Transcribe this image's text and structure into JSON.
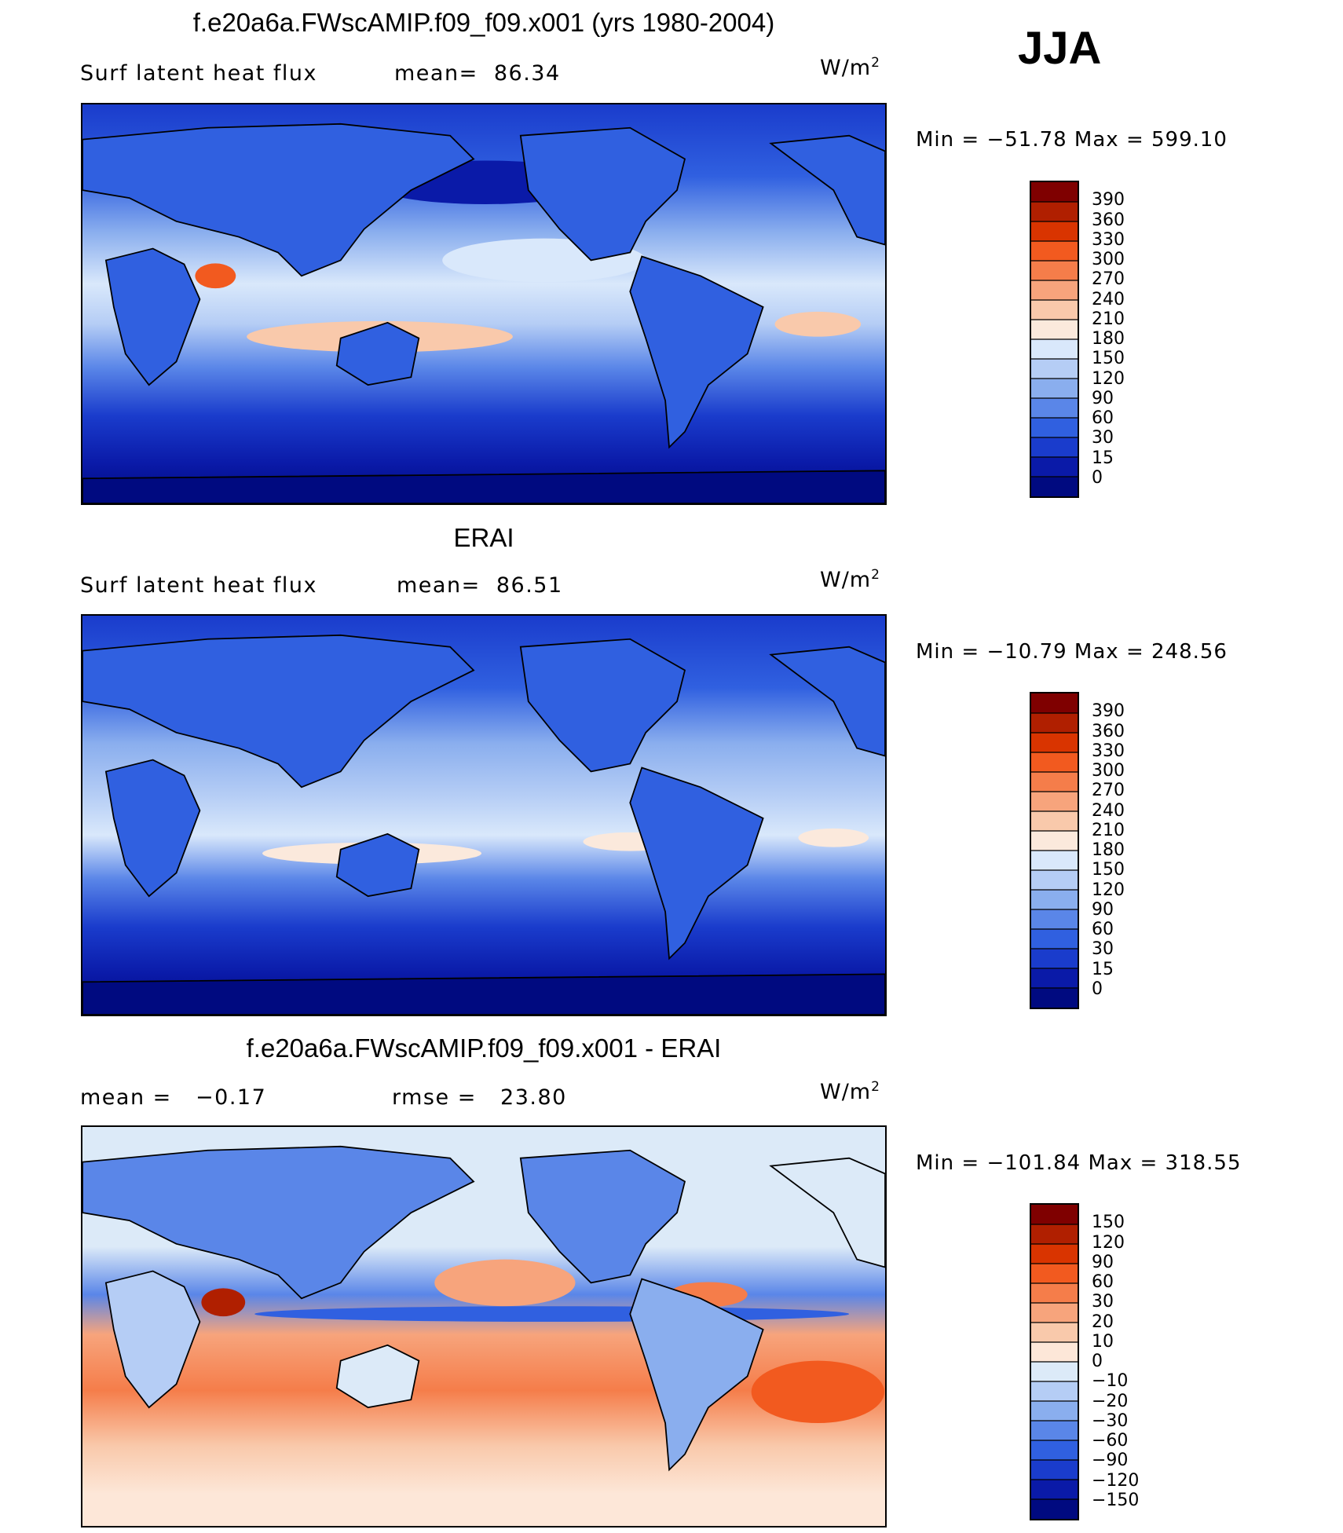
{
  "season": "JJA",
  "units_base": "W/m",
  "units_exp": "2",
  "panels": [
    {
      "title": "f.e20a6a.FWscAMIP.f09_f09.x001 (yrs 1980-2004)",
      "left_text": "Surf latent heat flux",
      "stat_text": "mean=  86.34",
      "min_max": "Min = −51.78 Max = 599.10",
      "levels": [
        "390",
        "360",
        "330",
        "300",
        "270",
        "240",
        "210",
        "180",
        "150",
        "120",
        "90",
        "60",
        "30",
        "15",
        "0"
      ]
    },
    {
      "title": "ERAI",
      "left_text": "Surf latent heat flux",
      "stat_text": "mean=  86.51",
      "min_max": "Min = −10.79 Max = 248.56",
      "levels": [
        "390",
        "360",
        "330",
        "300",
        "270",
        "240",
        "210",
        "180",
        "150",
        "120",
        "90",
        "60",
        "30",
        "15",
        "0"
      ]
    },
    {
      "title": "f.e20a6a.FWscAMIP.f09_f09.x001 - ERAI",
      "left_text": "mean =   −0.17",
      "stat_text": "rmse =   23.80",
      "min_max": "Min = −101.84 Max = 318.55",
      "levels": [
        "150",
        "120",
        "90",
        "60",
        "30",
        "20",
        "10",
        "0",
        "−10",
        "−20",
        "−30",
        "−60",
        "−90",
        "−120",
        "−150"
      ]
    }
  ],
  "colors": {
    "abs_scale": [
      "#7f0000",
      "#b01f00",
      "#d93400",
      "#f25a1f",
      "#f57d4a",
      "#f7a47c",
      "#f9c9ab",
      "#fbe9dc",
      "#d9e8fb",
      "#b5cdf5",
      "#8aaeee",
      "#5a86e8",
      "#3060e0",
      "#1a3ccc",
      "#0a1aa8",
      "#000a80"
    ],
    "diff_scale": [
      "#7f0000",
      "#b01f00",
      "#d93400",
      "#f25a1f",
      "#f57d4a",
      "#f7a47c",
      "#f9c9ab",
      "#fde7d8",
      "#dceaf8",
      "#b5cdf5",
      "#8aaeee",
      "#5a86e8",
      "#3060e0",
      "#1a3ccc",
      "#0a1aa8",
      "#000a80"
    ]
  }
}
